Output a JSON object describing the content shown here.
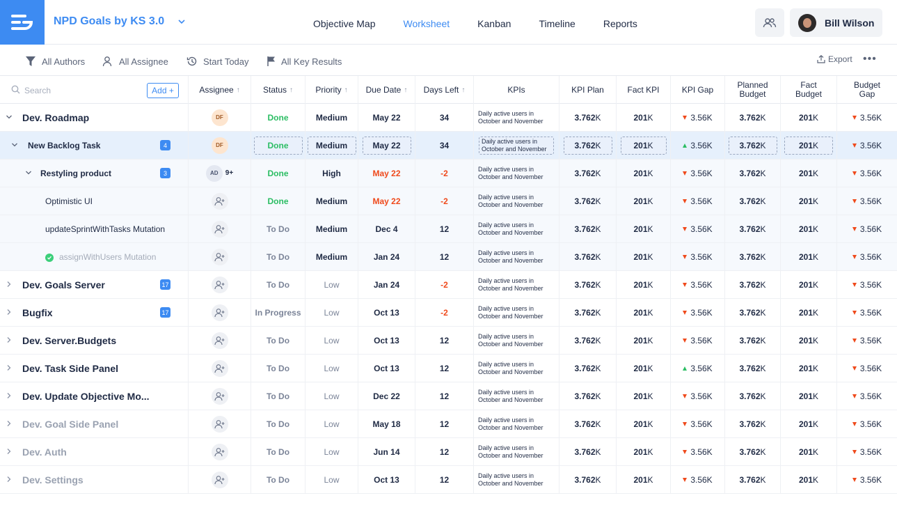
{
  "header": {
    "project_title": "NPD Goals by KS 3.0",
    "nav_tabs": [
      {
        "label": "Objective Map"
      },
      {
        "label": "Worksheet",
        "active": true
      },
      {
        "label": "Kanban"
      },
      {
        "label": "Timeline"
      },
      {
        "label": "Reports"
      }
    ],
    "user_name": "Bill Wilson",
    "accent_color": "#3d8bf2"
  },
  "filters": {
    "authors": "All Authors",
    "assignee": "All Assignee",
    "start": "Start Today",
    "key_results": "All Key Results",
    "export": "Export"
  },
  "table": {
    "search_placeholder": "Search",
    "add_label": "Add +",
    "columns": {
      "assignee": "Assignee",
      "status": "Status",
      "priority": "Priority",
      "due": "Due Date",
      "days": "Days Left",
      "kpis": "KPIs",
      "kpi_plan": "KPI Plan",
      "fact_kpi": "Fact KPI",
      "kpi_gap": "KPI Gap",
      "planned_budget_1": "Planned",
      "planned_budget_2": "Budget",
      "fact_budget_1": "Fact",
      "fact_budget_2": "Budget",
      "budget_gap_1": "Budget",
      "budget_gap_2": "Gap"
    },
    "kpi_line_1": "Daily active users in",
    "kpi_line_2": "October and November",
    "rows": [
      {
        "name": "Dev. Roadmap",
        "level": 0,
        "expanded": true,
        "assignee": "DF",
        "status": "Done",
        "priority": "Medium",
        "due": "May 22",
        "days": "34",
        "plan": "3.762",
        "fact": "201",
        "gap": "3.56K",
        "gap_dir": "down",
        "pbudget": "3.762",
        "fbudget": "201",
        "bgap": "3.56K"
      },
      {
        "name": "New Backlog Task",
        "level": 1,
        "expanded": true,
        "count": "4",
        "selected": true,
        "assignee": "DF",
        "status": "Done",
        "priority": "Medium",
        "due": "May 22",
        "days": "34",
        "plan": "3.762",
        "fact": "201",
        "gap": "3.56K",
        "gap_dir": "up",
        "pbudget": "3.762",
        "fbudget": "201",
        "bgap": "3.56K"
      },
      {
        "name": "Restyling product",
        "level": 2,
        "expanded": true,
        "count": "3",
        "assignee": "AD",
        "assignee_more": "9+",
        "status": "Done",
        "priority": "High",
        "due": "May 22",
        "due_late": true,
        "days": "-2",
        "plan": "3.762",
        "fact": "201",
        "gap": "3.56K",
        "gap_dir": "down",
        "pbudget": "3.762",
        "fbudget": "201",
        "bgap": "3.56K"
      },
      {
        "name": "Optimistic UI",
        "level": 3,
        "status": "Done",
        "priority": "Medium",
        "due": "May 22",
        "due_late": true,
        "days": "-2",
        "plan": "3.762",
        "fact": "201",
        "gap": "3.56K",
        "gap_dir": "down",
        "pbudget": "3.762",
        "fbudget": "201",
        "bgap": "3.56K"
      },
      {
        "name": "updateSprintWithTasks Mutation",
        "level": 3,
        "status": "To Do",
        "priority": "Medium",
        "due": "Dec 4",
        "days": "12",
        "plan": "3.762",
        "fact": "201",
        "gap": "3.56K",
        "gap_dir": "down",
        "pbudget": "3.762",
        "fbudget": "201",
        "bgap": "3.56K"
      },
      {
        "name": "assignWithUsers Mutation",
        "level": 3,
        "completed": true,
        "status": "To Do",
        "priority": "Medium",
        "due": "Jan 24",
        "days": "12",
        "plan": "3.762",
        "fact": "201",
        "gap": "3.56K",
        "gap_dir": "down",
        "pbudget": "3.762",
        "fbudget": "201",
        "bgap": "3.56K"
      },
      {
        "name": "Dev. Goals Server",
        "level": 0,
        "count": "17",
        "status": "To Do",
        "priority": "Low",
        "due": "Jan 24",
        "days": "-2",
        "plan": "3.762",
        "fact": "201",
        "gap": "3.56K",
        "gap_dir": "down",
        "pbudget": "3.762",
        "fbudget": "201",
        "bgap": "3.56K"
      },
      {
        "name": "Bugfix",
        "level": 0,
        "count": "17",
        "status": "In Progress",
        "priority": "Low",
        "due": "Oct 13",
        "days": "-2",
        "plan": "3.762",
        "fact": "201",
        "gap": "3.56K",
        "gap_dir": "down",
        "pbudget": "3.762",
        "fbudget": "201",
        "bgap": "3.56K"
      },
      {
        "name": "Dev. Server.Budgets",
        "level": 0,
        "status": "To Do",
        "priority": "Low",
        "due": "Oct 13",
        "days": "12",
        "plan": "3.762",
        "fact": "201",
        "gap": "3.56K",
        "gap_dir": "down",
        "pbudget": "3.762",
        "fbudget": "201",
        "bgap": "3.56K"
      },
      {
        "name": "Dev. Task Side Panel",
        "level": 0,
        "status": "To Do",
        "priority": "Low",
        "due": "Oct 13",
        "days": "12",
        "plan": "3.762",
        "fact": "201",
        "gap": "3.56K",
        "gap_dir": "up",
        "pbudget": "3.762",
        "fbudget": "201",
        "bgap": "3.56K"
      },
      {
        "name": "Dev. Update Objective Mo...",
        "level": 0,
        "status": "To Do",
        "priority": "Low",
        "due": "Dec 22",
        "days": "12",
        "plan": "3.762",
        "fact": "201",
        "gap": "3.56K",
        "gap_dir": "down",
        "pbudget": "3.762",
        "fbudget": "201",
        "bgap": "3.56K"
      },
      {
        "name": "Dev. Goal Side Panel",
        "level": 0,
        "muted": true,
        "status": "To Do",
        "priority": "Low",
        "due": "May 18",
        "days": "12",
        "plan": "3.762",
        "fact": "201",
        "gap": "3.56K",
        "gap_dir": "down",
        "pbudget": "3.762",
        "fbudget": "201",
        "bgap": "3.56K"
      },
      {
        "name": "Dev. Auth",
        "level": 0,
        "muted": true,
        "status": "To Do",
        "priority": "Low",
        "due": "Jun 14",
        "days": "12",
        "plan": "3.762",
        "fact": "201",
        "gap": "3.56K",
        "gap_dir": "down",
        "pbudget": "3.762",
        "fbudget": "201",
        "bgap": "3.56K"
      },
      {
        "name": "Dev. Settings",
        "level": 0,
        "muted": true,
        "status": "To Do",
        "priority": "Low",
        "due": "Oct 13",
        "days": "12",
        "plan": "3.762",
        "fact": "201",
        "gap": "3.56K",
        "gap_dir": "down",
        "pbudget": "3.762",
        "fbudget": "201",
        "bgap": "3.56K"
      }
    ]
  }
}
